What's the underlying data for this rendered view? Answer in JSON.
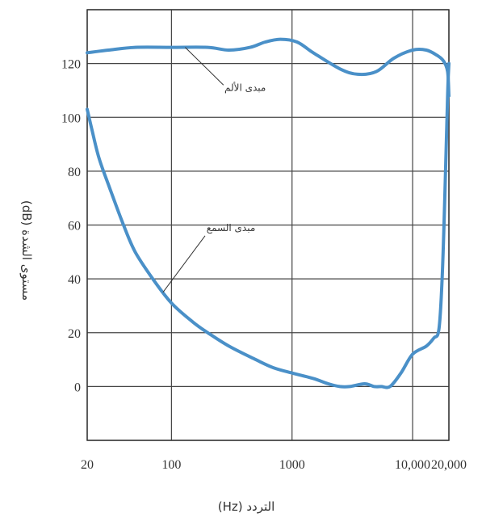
{
  "chart_data": {
    "type": "line",
    "title": "",
    "xlabel": "(Hz) التردد",
    "ylabel": "مستوى الشدة (dB)",
    "x_scale": "log",
    "x_tick_labels": [
      "20",
      "100",
      "1000",
      "10,000",
      "20,000"
    ],
    "x_ticks": [
      20,
      100,
      1000,
      10000,
      20000
    ],
    "y_ticks": [
      0,
      20,
      40,
      60,
      80,
      100,
      120
    ],
    "ylim": [
      -20,
      140
    ],
    "grid": true,
    "line_color": "#4a90c8",
    "series": [
      {
        "name": "مبدى الألم",
        "x": [
          20,
          30,
          50,
          100,
          200,
          300,
          450,
          600,
          800,
          1100,
          1500,
          2500,
          3500,
          5000,
          7000,
          10000,
          13000,
          16000,
          18000,
          19500,
          20000
        ],
        "y": [
          124,
          125,
          126,
          126,
          126,
          125,
          126,
          128,
          129,
          128,
          124,
          118,
          116,
          117,
          122,
          125,
          125,
          123,
          121,
          117,
          108
        ]
      },
      {
        "name": "مبدى السمع",
        "x": [
          20,
          22,
          25,
          30,
          40,
          50,
          70,
          100,
          150,
          200,
          300,
          500,
          700,
          1000,
          1500,
          2000,
          2500,
          3000,
          4000,
          4800,
          5500,
          6500,
          8000,
          10000,
          13000,
          15000,
          16500,
          17500,
          18500,
          19500,
          20000
        ],
        "y": [
          103,
          95,
          85,
          75,
          60,
          50,
          40,
          31,
          24,
          20,
          15,
          10,
          7,
          5,
          3,
          1,
          0,
          0,
          1,
          0,
          0,
          0,
          5,
          12,
          15,
          18,
          21,
          38,
          70,
          108,
          120
        ]
      }
    ],
    "annotations": [
      {
        "text": "مبدى الألم",
        "series": "مبدى الألم"
      },
      {
        "text": "مبدى السمع",
        "series": "مبدى السمع"
      }
    ]
  }
}
